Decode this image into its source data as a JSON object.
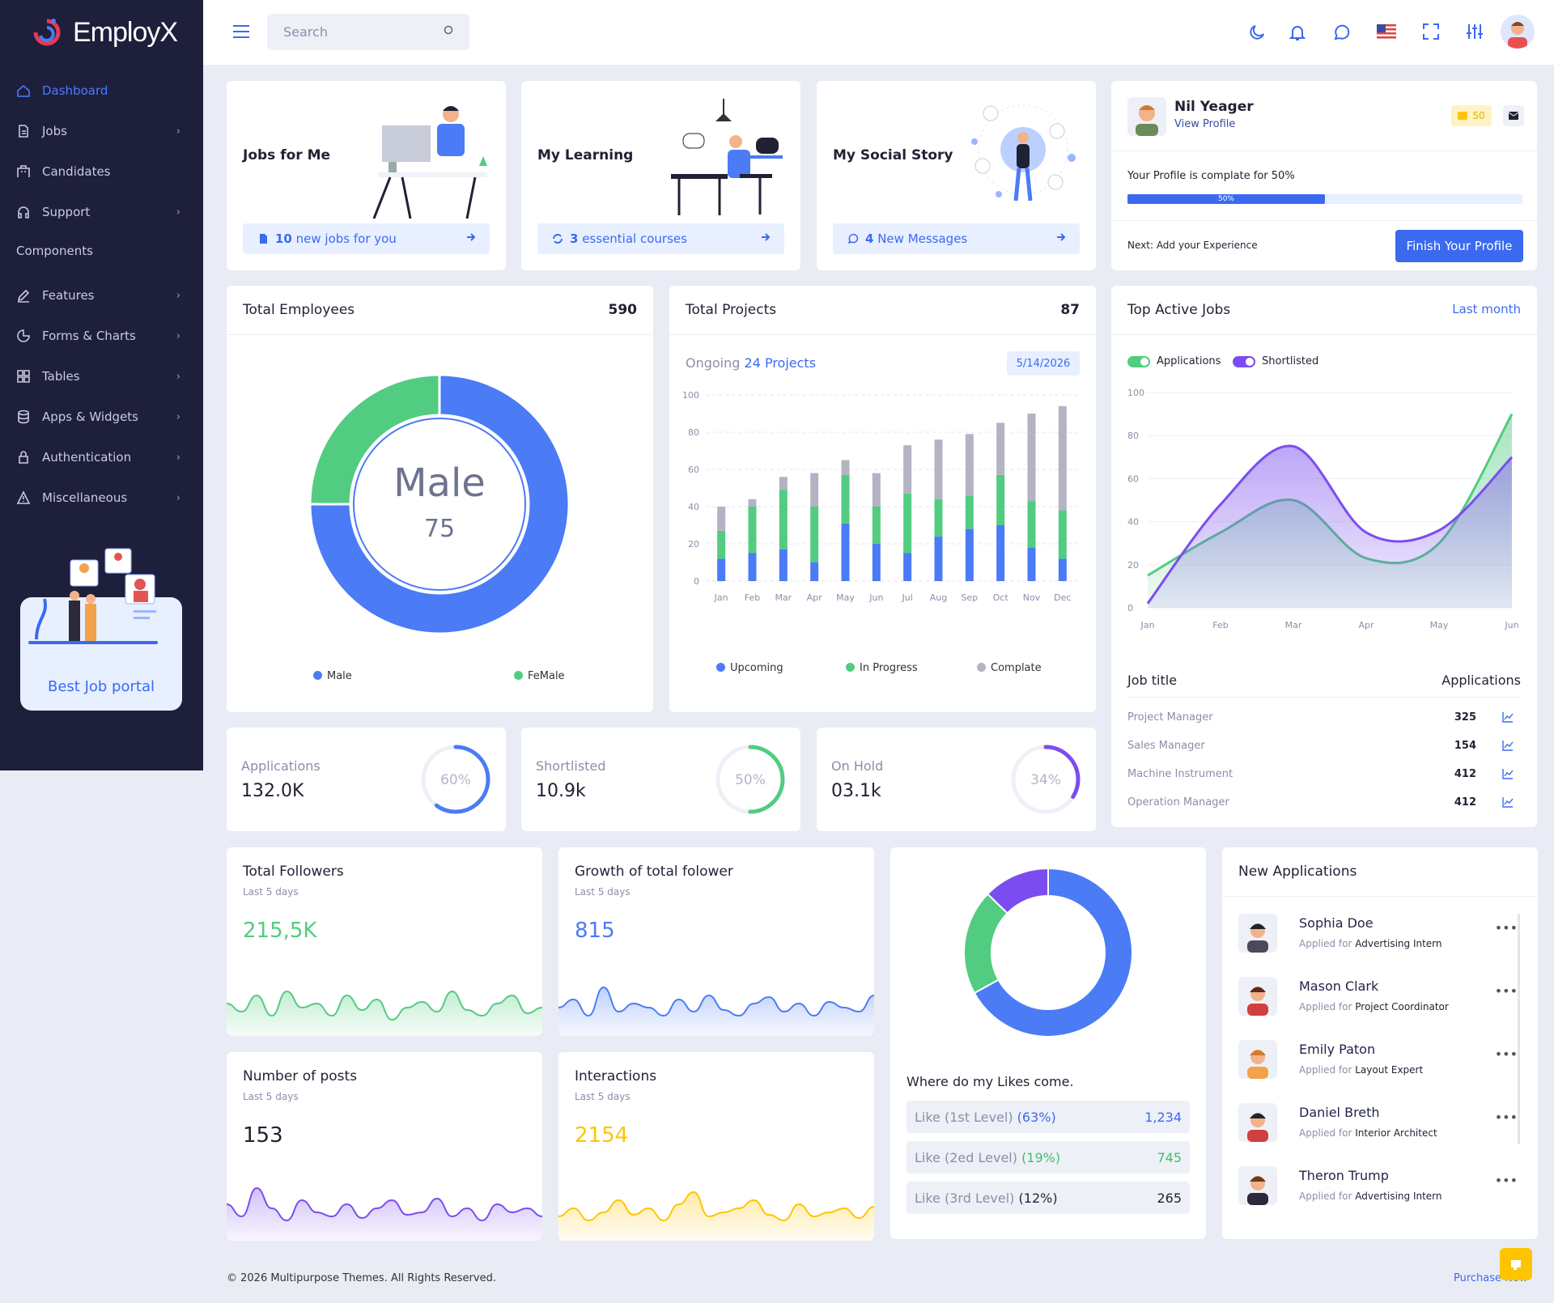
{
  "app": {
    "name": "EmployX"
  },
  "sidebar": {
    "items": [
      {
        "label": "Dashboard",
        "icon": "home-icon",
        "active": true
      },
      {
        "label": "Jobs",
        "icon": "document-icon"
      },
      {
        "label": "Candidates",
        "icon": "building-icon"
      },
      {
        "label": "Support",
        "icon": "headset-icon"
      },
      {
        "label": "Features",
        "icon": "edit-icon"
      },
      {
        "label": "Forms & Charts",
        "icon": "pie-icon"
      },
      {
        "label": "Tables",
        "icon": "grid-icon"
      },
      {
        "label": "Apps & Widgets",
        "icon": "database-icon"
      },
      {
        "label": "Authentication",
        "icon": "lock-icon"
      },
      {
        "label": "Miscellaneous",
        "icon": "warning-icon"
      }
    ],
    "section_label": "Components",
    "promo_label": "Best Job portal"
  },
  "topbar": {
    "search_placeholder": "Search"
  },
  "cards": {
    "jobs": {
      "title": "Jobs for Me",
      "count": "10",
      "pill_text": " new jobs for you"
    },
    "learning": {
      "title": "My Learning",
      "count": "3",
      "pill_text": " essential courses"
    },
    "social": {
      "title": "My Social Story",
      "count": "4",
      "pill_text": " New Messages"
    }
  },
  "profile": {
    "name": "Nil Yeager",
    "link": "View Profile",
    "points": "50",
    "complete_text": "Your Profile is complate for 50%",
    "progress_label": "50%",
    "progress": 50,
    "next_text": "Next: Add your Experience",
    "button": "Finish Your Profile"
  },
  "employees": {
    "title": "Total Employees",
    "total": "590",
    "center_label": "Male",
    "center_value": "75",
    "legend": [
      "Male",
      "FeMale"
    ],
    "colors": [
      "#4b7bf5",
      "#52cc80"
    ]
  },
  "projects": {
    "title": "Total Projects",
    "total": "87",
    "ongoing_prefix": "Ongoing ",
    "ongoing_value": "24 Projects",
    "date": "5/14/2026",
    "legend": [
      "Upcoming",
      "In Progress",
      "Complate"
    ]
  },
  "top_jobs": {
    "title": "Top Active Jobs",
    "period": "Last month",
    "toggles": [
      "Applications",
      "Shortlisted"
    ],
    "table_header": [
      "Job title",
      "Applications"
    ],
    "rows": [
      {
        "title": "Project Manager",
        "value": "325"
      },
      {
        "title": "Sales Manager",
        "value": "154"
      },
      {
        "title": "Machine Instrument",
        "value": "412"
      },
      {
        "title": "Operation Manager",
        "value": "412"
      }
    ]
  },
  "stats": [
    {
      "label": "Applications",
      "value": "132.0K",
      "percent_label": "60%",
      "percent": 60,
      "color": "#4b7bf5"
    },
    {
      "label": "Shortlisted",
      "value": "10.9k",
      "percent_label": "50%",
      "percent": 50,
      "color": "#52cc80"
    },
    {
      "label": "On Hold",
      "value": "03.1k",
      "percent_label": "34%",
      "percent": 34,
      "color": "#7b4df0"
    }
  ],
  "mini": [
    {
      "title": "Total Followers",
      "sub": "Last 5 days",
      "value": "215,5K",
      "color": "#52cc80"
    },
    {
      "title": "Growth of total folower",
      "sub": "Last 5 days",
      "value": "815",
      "color": "#4b7bf5"
    },
    {
      "title": "Number of posts",
      "sub": "Last 5 days",
      "value": "153",
      "color": "#7b4df0"
    },
    {
      "title": "Interactions",
      "sub": "Last 5 days",
      "value": "2154",
      "color": "#ffc400"
    }
  ],
  "likes": {
    "title": "Where do my Likes come.",
    "rows": [
      {
        "label": "Like (1st Level) ",
        "pct": "(63%)",
        "value": "1,234",
        "color": "#3b6af0"
      },
      {
        "label": "Like (2ed Level) ",
        "pct": "(19%)",
        "value": "745",
        "color": "#3fbf6f"
      },
      {
        "label": "Like (3rd Level) ",
        "pct": "(12%)",
        "value": "265",
        "color": "#1f2233"
      }
    ]
  },
  "new_applications": {
    "title": "New Applications",
    "applied_prefix": "Applied for ",
    "items": [
      {
        "name": "Sophia Doe",
        "role": "Advertising Intern"
      },
      {
        "name": "Mason Clark",
        "role": "Project Coordinator"
      },
      {
        "name": "Emily Paton",
        "role": "Layout Expert"
      },
      {
        "name": "Daniel Breth",
        "role": "Interior Architect"
      },
      {
        "name": "Theron Trump",
        "role": "Advertising Intern"
      }
    ]
  },
  "footer": {
    "copyright": "© 2026 Multipurpose Themes. All Rights Reserved.",
    "link": "Purchase Now"
  },
  "chart_data": [
    {
      "type": "pie",
      "title": "Total Employees",
      "categories": [
        "Male",
        "FeMale"
      ],
      "values": [
        75,
        25
      ]
    },
    {
      "type": "bar",
      "title": "Total Projects",
      "categories": [
        "Jan",
        "Feb",
        "Mar",
        "Apr",
        "May",
        "Jun",
        "Jul",
        "Aug",
        "Sep",
        "Oct",
        "Nov",
        "Dec"
      ],
      "ylim": [
        0,
        100
      ],
      "yticks": [
        0,
        20,
        40,
        60,
        80,
        100
      ],
      "series": [
        {
          "name": "Upcoming",
          "values": [
            12,
            15,
            17,
            10,
            31,
            20,
            15,
            24,
            28,
            30,
            18,
            12
          ],
          "color": "#4b7bf5"
        },
        {
          "name": "In Progress",
          "values": [
            15,
            25,
            32,
            30,
            26,
            20,
            32,
            20,
            18,
            27,
            25,
            26
          ],
          "color": "#52cc80"
        },
        {
          "name": "Complate",
          "values": [
            13,
            4,
            7,
            18,
            8,
            18,
            26,
            32,
            33,
            28,
            47,
            56
          ],
          "color": "#b3b3c3"
        }
      ]
    },
    {
      "type": "area",
      "title": "Top Active Jobs",
      "categories": [
        "Jan",
        "Feb",
        "Mar",
        "Apr",
        "May",
        "Jun"
      ],
      "ylim": [
        0,
        100
      ],
      "yticks": [
        0,
        20,
        40,
        60,
        80,
        100
      ],
      "series": [
        {
          "name": "Applications",
          "values": [
            15,
            35,
            50,
            23,
            30,
            90
          ],
          "color": "#52cc80"
        },
        {
          "name": "Shortlisted",
          "values": [
            2,
            48,
            75,
            35,
            36,
            70
          ],
          "color": "#7b4df0"
        }
      ]
    },
    {
      "type": "pie",
      "title": "Where do my Likes come.",
      "categories": [
        "Like (1st Level)",
        "Like (2ed Level)",
        "Like (3rd Level)"
      ],
      "values": [
        63,
        19,
        12
      ]
    }
  ]
}
